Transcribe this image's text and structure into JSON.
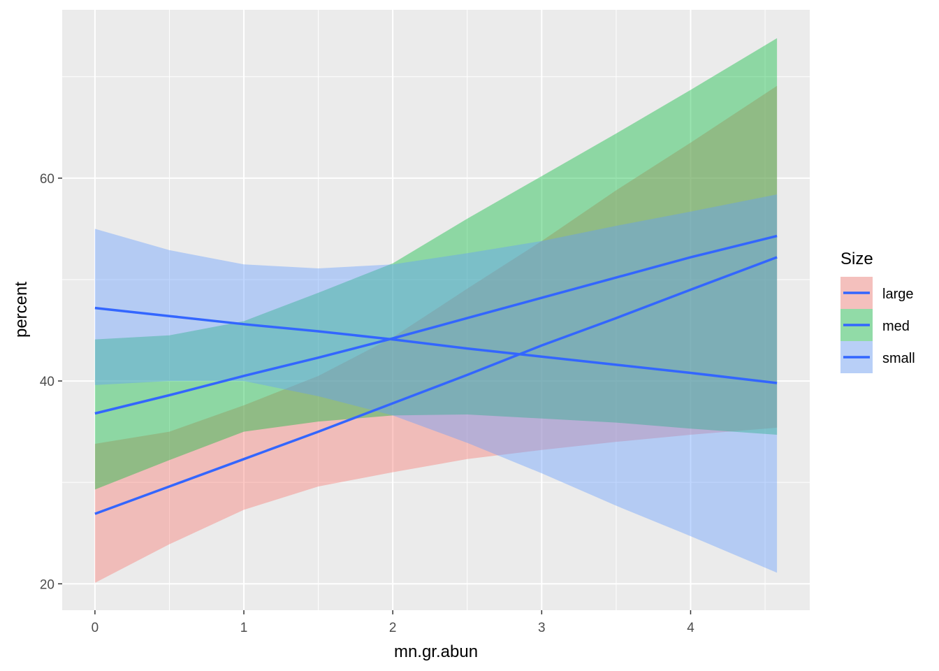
{
  "chart_data": {
    "type": "line",
    "title": "",
    "xlabel": "mn.gr.abun",
    "ylabel": "percent",
    "xlim": [
      -0.22,
      4.8
    ],
    "ylim": [
      17.4,
      76.6
    ],
    "x_ticks": [
      0,
      1,
      2,
      3,
      4
    ],
    "x_tick_labels": [
      "0",
      "1",
      "2",
      "3",
      "4"
    ],
    "y_ticks": [
      20,
      40,
      60
    ],
    "y_tick_labels": [
      "20",
      "40",
      "60"
    ],
    "grid": true,
    "legend": {
      "title": "Size",
      "position": "right",
      "entries": [
        "large",
        "med",
        "small"
      ]
    },
    "line_color": "#3366FF",
    "x": [
      0,
      0.5,
      1,
      1.5,
      2,
      2.5,
      3,
      3.5,
      4,
      4.58
    ],
    "series": [
      {
        "name": "large",
        "fill": "#F8766D",
        "values": [
          26.9,
          29.6,
          32.3,
          35.0,
          37.8,
          40.6,
          43.5,
          46.2,
          49.0,
          52.2
        ],
        "lower": [
          20.1,
          23.9,
          27.3,
          29.6,
          31.0,
          32.3,
          33.2,
          34.0,
          34.7,
          35.4
        ],
        "upper": [
          33.8,
          35.0,
          37.6,
          40.5,
          44.3,
          49.1,
          53.8,
          58.8,
          63.5,
          69.1
        ]
      },
      {
        "name": "med",
        "fill": "#00BA38",
        "values": [
          36.8,
          38.6,
          40.5,
          42.3,
          44.2,
          46.2,
          48.2,
          50.2,
          52.2,
          54.3
        ],
        "lower": [
          29.3,
          32.2,
          35.0,
          36.0,
          36.6,
          36.7,
          36.3,
          35.9,
          35.3,
          34.7
        ],
        "upper": [
          44.1,
          44.5,
          45.9,
          48.7,
          51.6,
          56.0,
          60.2,
          64.4,
          68.7,
          73.8
        ]
      },
      {
        "name": "small",
        "fill": "#619CFF",
        "values": [
          47.2,
          46.4,
          45.6,
          44.9,
          44.1,
          43.2,
          42.4,
          41.6,
          40.8,
          39.8
        ],
        "lower": [
          39.6,
          40.0,
          40.0,
          38.5,
          36.6,
          33.9,
          30.9,
          27.7,
          24.7,
          21.1
        ],
        "upper": [
          55.0,
          52.9,
          51.5,
          51.1,
          51.5,
          52.6,
          53.8,
          55.3,
          56.7,
          58.4
        ]
      }
    ]
  }
}
